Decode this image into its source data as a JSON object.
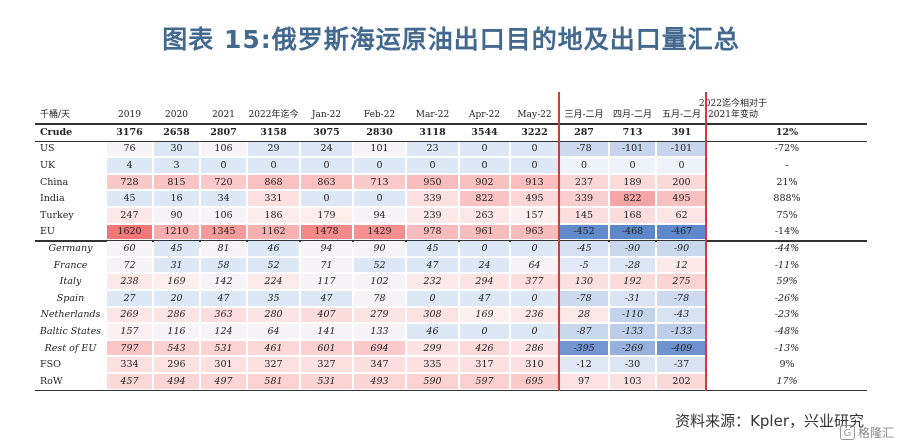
{
  "title": "图表 15:俄罗斯海运原油出口目的地及出口量汇总",
  "source": "资料来源：Kpler，兴业研究",
  "watermark": {
    "text": "格隆汇",
    "logo": "G"
  },
  "table": {
    "unit_label": "千桶/天",
    "columns": [
      "2019",
      "2020",
      "2021",
      "2022年迄今",
      "Jan-22",
      "Feb-22",
      "Mar-22",
      "Apr-22",
      "May-22",
      "三月-二月",
      "四月-二月",
      "五月-二月",
      "2022迄今相对于 2021年变动"
    ],
    "rows": [
      {
        "label": "Crude",
        "style": "bold",
        "values": [
          "3176",
          "2658",
          "2807",
          "3158",
          "3075",
          "2830",
          "3118",
          "3544",
          "3222",
          "287",
          "713",
          "391",
          "12%"
        ]
      },
      {
        "label": "US",
        "style": "normal",
        "values": [
          "76",
          "30",
          "106",
          "29",
          "24",
          "101",
          "23",
          "0",
          "0",
          "-78",
          "-101",
          "-101",
          "-72%"
        ]
      },
      {
        "label": "UK",
        "style": "normal",
        "values": [
          "4",
          "3",
          "0",
          "0",
          "0",
          "0",
          "0",
          "0",
          "0",
          "0",
          "0",
          "0",
          "-"
        ]
      },
      {
        "label": "China",
        "style": "normal",
        "values": [
          "728",
          "815",
          "720",
          "868",
          "863",
          "713",
          "950",
          "902",
          "913",
          "237",
          "189",
          "200",
          "21%"
        ]
      },
      {
        "label": "India",
        "style": "normal",
        "values": [
          "45",
          "16",
          "34",
          "331",
          "0",
          "0",
          "339",
          "822",
          "495",
          "339",
          "822",
          "495",
          "888%"
        ]
      },
      {
        "label": "Turkey",
        "style": "normal",
        "values": [
          "247",
          "90",
          "106",
          "186",
          "179",
          "94",
          "239",
          "263",
          "157",
          "145",
          "168",
          "62",
          "75%"
        ]
      },
      {
        "label": "EU",
        "style": "normal",
        "values": [
          "1620",
          "1210",
          "1345",
          "1162",
          "1478",
          "1429",
          "978",
          "961",
          "963",
          "-452",
          "-468",
          "-467",
          "-14%"
        ]
      },
      {
        "label": "Germany",
        "style": "italic",
        "values": [
          "60",
          "45",
          "81",
          "46",
          "94",
          "90",
          "45",
          "0",
          "0",
          "-45",
          "-90",
          "-90",
          "-44%"
        ]
      },
      {
        "label": "France",
        "style": "italic",
        "values": [
          "72",
          "31",
          "58",
          "52",
          "71",
          "52",
          "47",
          "24",
          "64",
          "-5",
          "-28",
          "12",
          "-11%"
        ]
      },
      {
        "label": "Italy",
        "style": "italic",
        "values": [
          "238",
          "169",
          "142",
          "224",
          "117",
          "102",
          "232",
          "294",
          "377",
          "130",
          "192",
          "275",
          "59%"
        ]
      },
      {
        "label": "Spain",
        "style": "italic",
        "values": [
          "27",
          "20",
          "47",
          "35",
          "47",
          "78",
          "0",
          "47",
          "0",
          "-78",
          "-31",
          "-78",
          "-26%"
        ]
      },
      {
        "label": "Netherlands",
        "style": "italic",
        "values": [
          "269",
          "286",
          "363",
          "280",
          "407",
          "279",
          "308",
          "169",
          "236",
          "28",
          "-110",
          "-43",
          "-23%"
        ]
      },
      {
        "label": "Baltic States",
        "style": "italic",
        "values": [
          "157",
          "116",
          "124",
          "64",
          "141",
          "133",
          "46",
          "0",
          "0",
          "-87",
          "-133",
          "-133",
          "-48%"
        ]
      },
      {
        "label": "Rest of EU",
        "style": "italic",
        "values": [
          "797",
          "543",
          "531",
          "461",
          "601",
          "694",
          "299",
          "426",
          "286",
          "-395",
          "-269",
          "-409",
          "-13%"
        ]
      },
      {
        "label": "FSO",
        "style": "normal",
        "values": [
          "334",
          "296",
          "301",
          "327",
          "327",
          "347",
          "335",
          "317",
          "310",
          "-12",
          "-30",
          "-37",
          "9%"
        ]
      },
      {
        "label": "RoW",
        "style": "italic-values",
        "values": [
          "457",
          "494",
          "497",
          "581",
          "531",
          "493",
          "590",
          "597",
          "695",
          "97",
          "103",
          "202",
          "17%"
        ]
      }
    ],
    "colors": {
      "heat_high": "#f26d6d",
      "heat_mid": "#fbd0d0",
      "heat_low": "#dde8f6",
      "diff_neg": "#5b84c8",
      "diff_pos": "#f4a3a3",
      "divider": "#d43a3a"
    }
  }
}
